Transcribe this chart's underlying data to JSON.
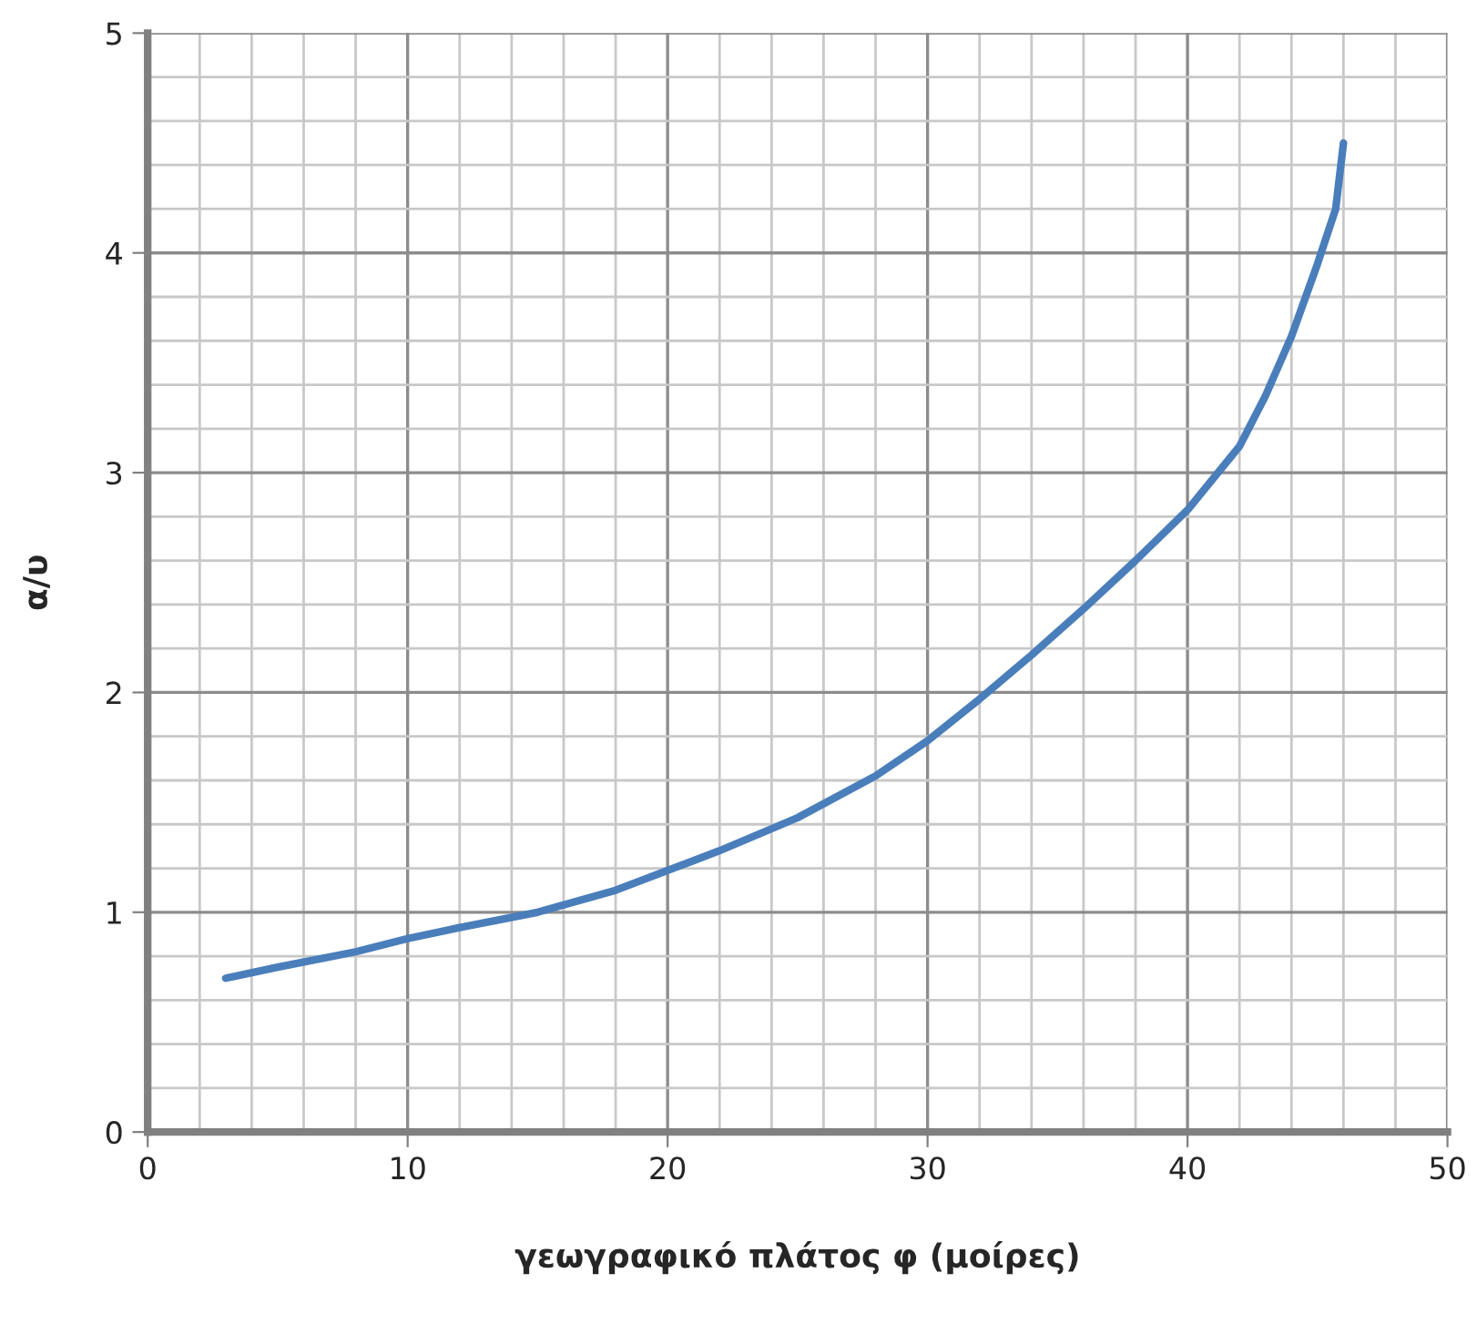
{
  "chart_data": {
    "type": "line",
    "xlabel": "γεωγραφικό πλάτος φ (μοίρες)",
    "ylabel": "α/υ",
    "x": [
      3,
      5,
      8,
      10,
      12,
      15,
      18,
      20,
      22,
      25,
      28,
      30,
      32,
      34,
      36,
      38,
      40,
      42,
      43,
      44,
      45,
      45.7,
      46
    ],
    "series": [
      {
        "color": "#4a7ebb",
        "values": [
          0.7,
          0.75,
          0.82,
          0.88,
          0.93,
          1.0,
          1.1,
          1.19,
          1.28,
          1.43,
          1.62,
          1.78,
          1.97,
          2.17,
          2.38,
          2.6,
          2.83,
          3.12,
          3.35,
          3.62,
          3.95,
          4.2,
          4.5
        ]
      }
    ],
    "xlim": [
      0,
      50
    ],
    "ylim": [
      0,
      5
    ],
    "xticks": [
      0,
      10,
      20,
      30,
      40,
      50
    ],
    "yticks": [
      0,
      1,
      2,
      3,
      4,
      5
    ],
    "grid": true,
    "line_style": "solid",
    "marker": "none"
  }
}
